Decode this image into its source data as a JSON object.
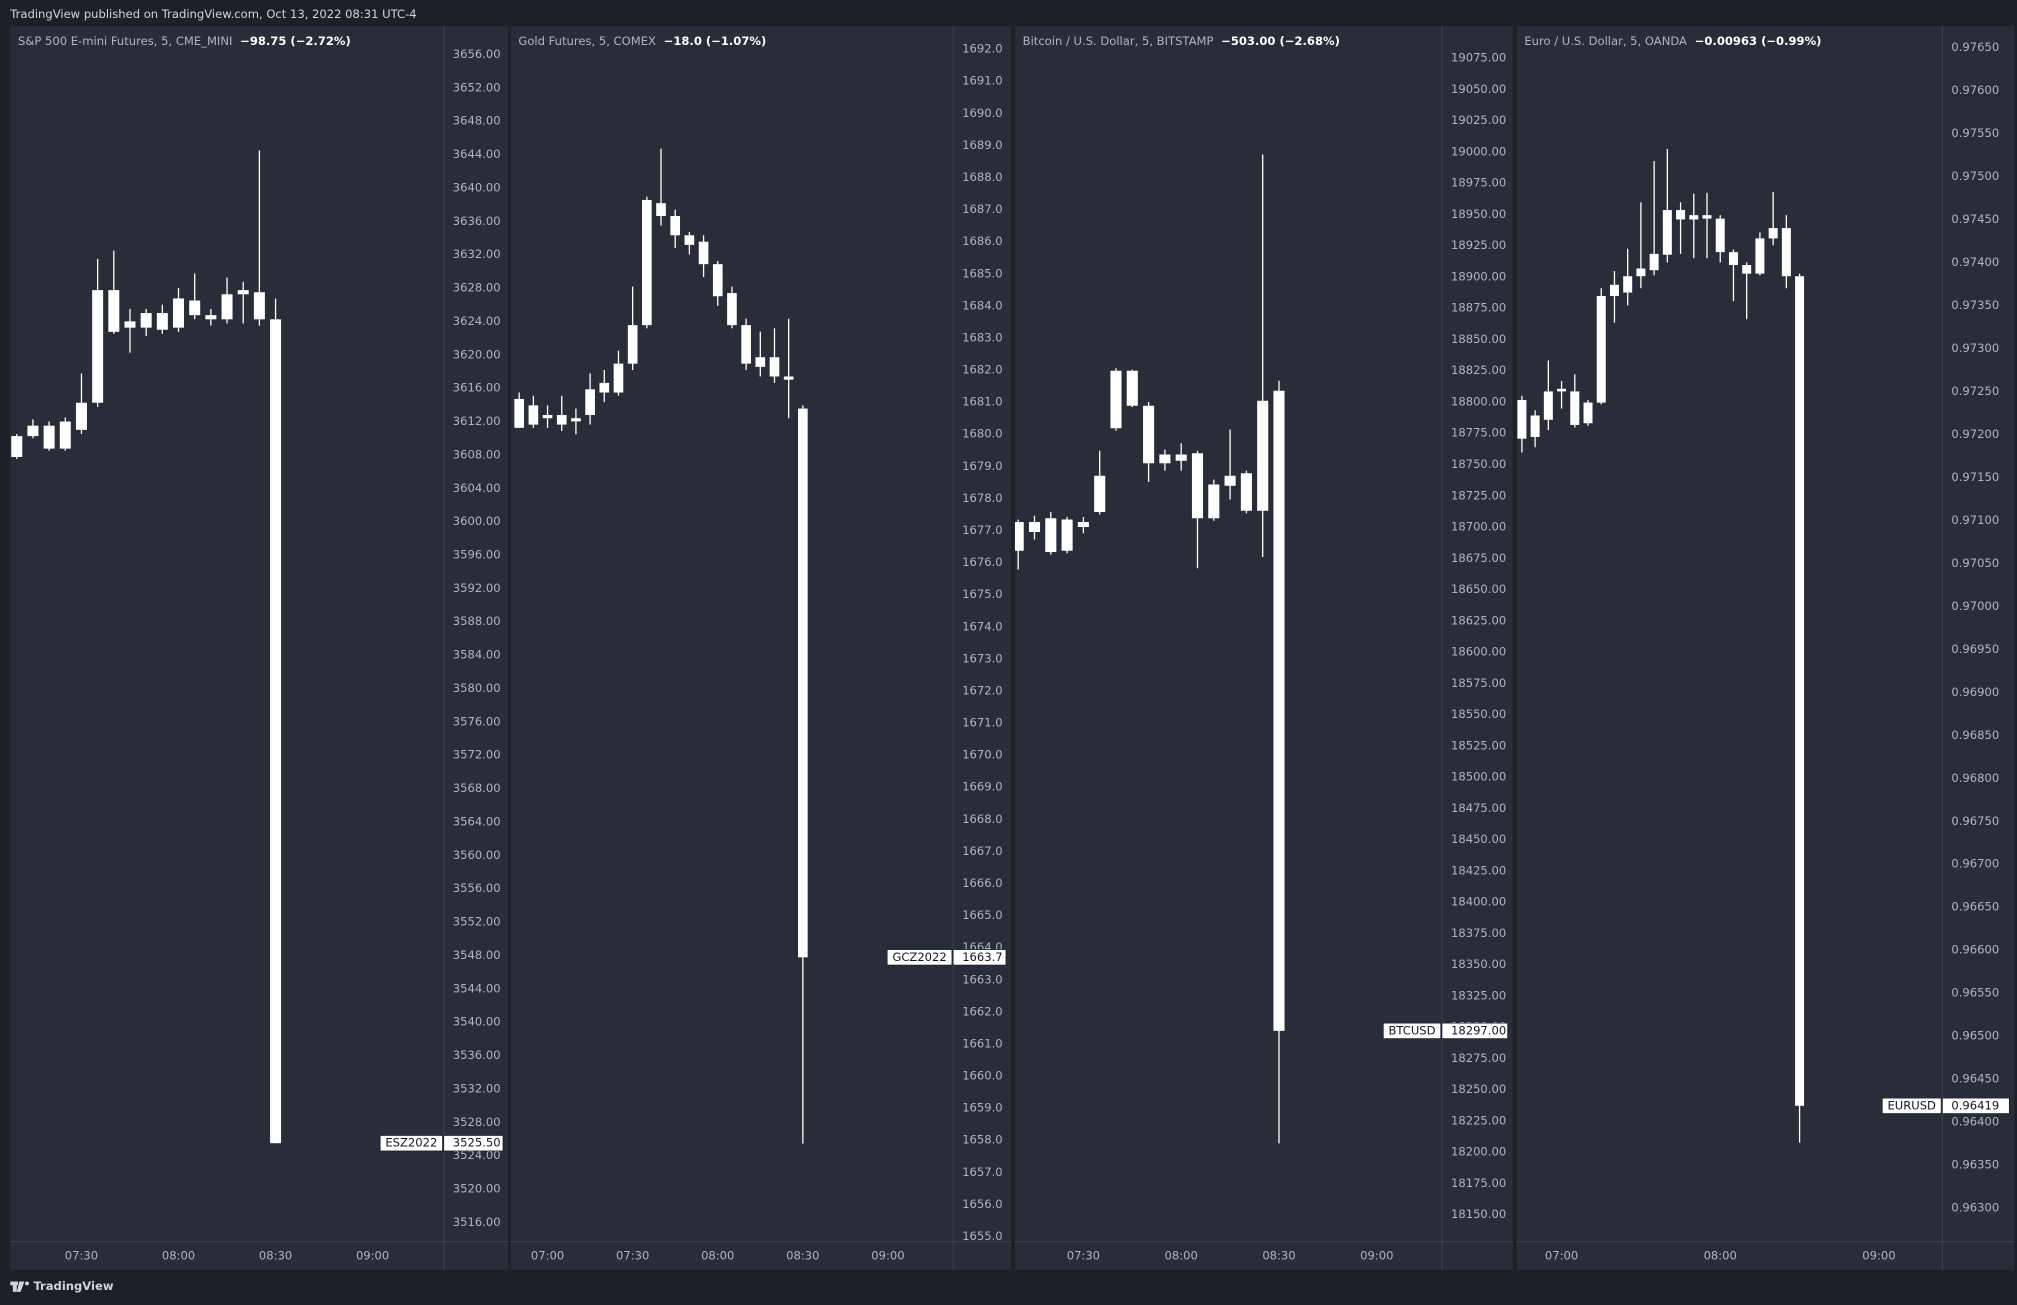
{
  "header": {
    "text": "TradingView published on TradingView.com, Oct 13, 2022 08:31 UTC-4"
  },
  "footer": {
    "logo": "TradingView"
  },
  "chart_data": [
    {
      "type": "candlestick",
      "title": "S&P 500 E-mini Futures, 5, CME_MINI",
      "change": "−98.75 (−2.72%)",
      "color": "#ffffff",
      "grid": false,
      "x": [
        "07:10",
        "07:15",
        "07:20",
        "07:25",
        "07:30",
        "07:35",
        "07:40",
        "07:45",
        "07:50",
        "07:55",
        "08:00",
        "08:05",
        "08:10",
        "08:15",
        "08:20",
        "08:25",
        "08:30"
      ],
      "open": [
        3607.75,
        3610.25,
        3611.5,
        3608.75,
        3611,
        3614.25,
        3627.75,
        3624,
        3623.25,
        3625,
        3623.25,
        3626.5,
        3624.75,
        3624.25,
        3627.25,
        3627.5,
        3624.25
      ],
      "high": [
        3610.5,
        3612.25,
        3612,
        3612.5,
        3617.75,
        3631.5,
        3632.5,
        3625.5,
        3625.5,
        3626,
        3628,
        3629.75,
        3625.5,
        3629.25,
        3628.75,
        3644.5,
        3626.75
      ],
      "low": [
        3607.5,
        3610,
        3608.5,
        3608.5,
        3610.5,
        3613.75,
        3622.5,
        3620.25,
        3622.25,
        3622.5,
        3622.75,
        3624.25,
        3623.5,
        3623.75,
        3623.75,
        3623.5,
        3525.5
      ],
      "close": [
        3610.25,
        3611.5,
        3608.75,
        3612,
        3614.25,
        3627.75,
        3622.75,
        3623.25,
        3625,
        3623,
        3626.75,
        3624.75,
        3624.25,
        3627.25,
        3627.75,
        3624.25,
        3525.5
      ],
      "symbol": "ESZ2022",
      "last": {
        "value": 3525.5,
        "label": "3525.50"
      },
      "xlim": [
        "07:08",
        "09:22"
      ],
      "xticks": [
        "07:30",
        "08:00",
        "08:30",
        "09:00"
      ],
      "ylim": [
        3513.7,
        3659.4
      ],
      "yticks": [
        {
          "value": 3516,
          "label": "3516.00"
        },
        {
          "value": 3520,
          "label": "3520.00"
        },
        {
          "value": 3524,
          "label": "3524.00"
        },
        {
          "value": 3528,
          "label": "3528.00"
        },
        {
          "value": 3532,
          "label": "3532.00"
        },
        {
          "value": 3536,
          "label": "3536.00"
        },
        {
          "value": 3540,
          "label": "3540.00"
        },
        {
          "value": 3544,
          "label": "3544.00"
        },
        {
          "value": 3548,
          "label": "3548.00"
        },
        {
          "value": 3552,
          "label": "3552.00"
        },
        {
          "value": 3556,
          "label": "3556.00"
        },
        {
          "value": 3560,
          "label": "3560.00"
        },
        {
          "value": 3564,
          "label": "3564.00"
        },
        {
          "value": 3568,
          "label": "3568.00"
        },
        {
          "value": 3572,
          "label": "3572.00"
        },
        {
          "value": 3576,
          "label": "3576.00"
        },
        {
          "value": 3580,
          "label": "3580.00"
        },
        {
          "value": 3584,
          "label": "3584.00"
        },
        {
          "value": 3588,
          "label": "3588.00"
        },
        {
          "value": 3592,
          "label": "3592.00"
        },
        {
          "value": 3596,
          "label": "3596.00"
        },
        {
          "value": 3600,
          "label": "3600.00"
        },
        {
          "value": 3604,
          "label": "3604.00"
        },
        {
          "value": 3608,
          "label": "3608.00"
        },
        {
          "value": 3612,
          "label": "3612.00"
        },
        {
          "value": 3616,
          "label": "3616.00"
        },
        {
          "value": 3620,
          "label": "3620.00"
        },
        {
          "value": 3624,
          "label": "3624.00"
        },
        {
          "value": 3628,
          "label": "3628.00"
        },
        {
          "value": 3632,
          "label": "3632.00"
        },
        {
          "value": 3636,
          "label": "3636.00"
        },
        {
          "value": 3640,
          "label": "3640.00"
        },
        {
          "value": 3644,
          "label": "3644.00"
        },
        {
          "value": 3648,
          "label": "3648.00"
        },
        {
          "value": 3652,
          "label": "3652.00"
        },
        {
          "value": 3656,
          "label": "3656.00"
        }
      ]
    },
    {
      "type": "candlestick",
      "title": "Gold Futures, 5, COMEX",
      "change": "−18.0 (−1.07%)",
      "color": "#ffffff",
      "grid": false,
      "x": [
        "06:50",
        "06:55",
        "07:00",
        "07:05",
        "07:10",
        "07:15",
        "07:20",
        "07:25",
        "07:30",
        "07:35",
        "07:40",
        "07:45",
        "07:50",
        "07:55",
        "08:00",
        "08:05",
        "08:10",
        "08:15",
        "08:20",
        "08:25",
        "08:30"
      ],
      "open": [
        1681.1,
        1680.3,
        1680.5,
        1680.6,
        1680.4,
        1680.6,
        1681.3,
        1681.3,
        1682.2,
        1683.4,
        1687.2,
        1686.8,
        1686.2,
        1686.0,
        1685.3,
        1684.4,
        1683.4,
        1682.1,
        1682.4,
        1681.8,
        1680.8
      ],
      "high": [
        1681.3,
        1681.2,
        1680.9,
        1681.2,
        1680.8,
        1681.9,
        1682.0,
        1682.6,
        1684.6,
        1687.4,
        1688.9,
        1687.0,
        1686.3,
        1686.2,
        1685.4,
        1684.6,
        1683.6,
        1683.2,
        1683.3,
        1683.6,
        1680.9
      ],
      "low": [
        1680.2,
        1680.2,
        1680.2,
        1680.1,
        1680.0,
        1680.3,
        1681.0,
        1681.2,
        1682.0,
        1683.3,
        1686.5,
        1685.8,
        1685.6,
        1684.9,
        1684.0,
        1683.3,
        1682.0,
        1681.8,
        1681.6,
        1680.5,
        1657.9
      ],
      "close": [
        1680.2,
        1680.9,
        1680.6,
        1680.3,
        1680.5,
        1681.4,
        1681.6,
        1682.2,
        1683.4,
        1687.3,
        1686.8,
        1686.2,
        1685.9,
        1685.3,
        1684.3,
        1683.4,
        1682.2,
        1682.4,
        1681.8,
        1681.7,
        1663.7
      ],
      "symbol": "GCZ2022",
      "last": 1663.7,
      "xlim": [
        "06:47",
        "09:23"
      ],
      "xticks": [
        "07:00",
        "07:30",
        "08:00",
        "08:30",
        "09:00"
      ],
      "ylim": [
        1654.84,
        1692.72
      ],
      "yticks": [
        {
          "value": 1655,
          "label": "1655.0"
        },
        {
          "value": 1656,
          "label": "1656.0"
        },
        {
          "value": 1657,
          "label": "1657.0"
        },
        {
          "value": 1658,
          "label": "1658.0"
        },
        {
          "value": 1659,
          "label": "1659.0"
        },
        {
          "value": 1660,
          "label": "1660.0"
        },
        {
          "value": 1661,
          "label": "1661.0"
        },
        {
          "value": 1662,
          "label": "1662.0"
        },
        {
          "value": 1663,
          "label": "1663.0"
        },
        {
          "value": 1664,
          "label": "1664.0"
        },
        {
          "value": 1665,
          "label": "1665.0"
        },
        {
          "value": 1666,
          "label": "1666.0"
        },
        {
          "value": 1667,
          "label": "1667.0"
        },
        {
          "value": 1668,
          "label": "1668.0"
        },
        {
          "value": 1669,
          "label": "1669.0"
        },
        {
          "value": 1670,
          "label": "1670.0"
        },
        {
          "value": 1671,
          "label": "1671.0"
        },
        {
          "value": 1672,
          "label": "1672.0"
        },
        {
          "value": 1673,
          "label": "1673.0"
        },
        {
          "value": 1674,
          "label": "1674.0"
        },
        {
          "value": 1675,
          "label": "1675.0"
        },
        {
          "value": 1676,
          "label": "1676.0"
        },
        {
          "value": 1677,
          "label": "1677.0"
        },
        {
          "value": 1678,
          "label": "1678.0"
        },
        {
          "value": 1679,
          "label": "1679.0"
        },
        {
          "value": 1680,
          "label": "1680.0"
        },
        {
          "value": 1681,
          "label": "1681.0"
        },
        {
          "value": 1682,
          "label": "1682.0"
        },
        {
          "value": 1683,
          "label": "1683.0"
        },
        {
          "value": 1684,
          "label": "1684.0"
        },
        {
          "value": 1685,
          "label": "1685.0"
        },
        {
          "value": 1686,
          "label": "1686.0"
        },
        {
          "value": 1687,
          "label": "1687.0"
        },
        {
          "value": 1688,
          "label": "1688.0"
        },
        {
          "value": 1689,
          "label": "1689.0"
        },
        {
          "value": 1690,
          "label": "1690.0"
        },
        {
          "value": 1691,
          "label": "1691.0"
        },
        {
          "value": 1692,
          "label": "1692.0"
        }
      ]
    },
    {
      "type": "candlestick",
      "title": "Bitcoin / U.S. Dollar, 5, BITSTAMP",
      "change": "−503.00 (−2.68%)",
      "color": "#ffffff",
      "grid": false,
      "x": [
        "07:10",
        "07:15",
        "07:20",
        "07:25",
        "07:30",
        "07:35",
        "07:40",
        "07:45",
        "07:50",
        "07:55",
        "08:00",
        "08:05",
        "08:10",
        "08:15",
        "08:20",
        "08:25",
        "08:30"
      ],
      "open": [
        18681,
        18704,
        18680,
        18706,
        18700,
        18712,
        18779,
        18825,
        18797,
        18751,
        18758,
        18759,
        18707,
        18741,
        18713,
        18713,
        18809
      ],
      "high": [
        18706,
        18709,
        18712,
        18708,
        18708,
        18761,
        18827,
        18826,
        18800,
        18762,
        18767,
        18761,
        18738,
        18778,
        18745,
        18998,
        18817
      ],
      "low": [
        18666,
        18690,
        18678,
        18679,
        18695,
        18710,
        18777,
        18796,
        18736,
        18745,
        18745,
        18667,
        18705,
        18722,
        18711,
        18676,
        18207
      ],
      "close": [
        18704,
        18696,
        18707,
        18681,
        18704,
        18741,
        18825,
        18797,
        18751,
        18758,
        18753,
        18707,
        18734,
        18733,
        18743,
        18801,
        18297
      ],
      "symbol": "BTCUSD",
      "last": {
        "value": 18297,
        "label": "18297.00"
      },
      "xlim": [
        "07:09",
        "09:20"
      ],
      "xticks": [
        "07:30",
        "08:00",
        "08:30",
        "09:00"
      ],
      "ylim": [
        18128.4,
        19100.7
      ],
      "yticks": [
        {
          "value": 18150,
          "label": "18150.00"
        },
        {
          "value": 18175,
          "label": "18175.00"
        },
        {
          "value": 18200,
          "label": "18200.00"
        },
        {
          "value": 18225,
          "label": "18225.00"
        },
        {
          "value": 18250,
          "label": "18250.00"
        },
        {
          "value": 18275,
          "label": "18275.00"
        },
        {
          "value": 18300,
          "label": "18300.00"
        },
        {
          "value": 18325,
          "label": "18325.00"
        },
        {
          "value": 18350,
          "label": "18350.00"
        },
        {
          "value": 18375,
          "label": "18375.00"
        },
        {
          "value": 18400,
          "label": "18400.00"
        },
        {
          "value": 18425,
          "label": "18425.00"
        },
        {
          "value": 18450,
          "label": "18450.00"
        },
        {
          "value": 18475,
          "label": "18475.00"
        },
        {
          "value": 18500,
          "label": "18500.00"
        },
        {
          "value": 18525,
          "label": "18525.00"
        },
        {
          "value": 18550,
          "label": "18550.00"
        },
        {
          "value": 18575,
          "label": "18575.00"
        },
        {
          "value": 18600,
          "label": "18600.00"
        },
        {
          "value": 18625,
          "label": "18625.00"
        },
        {
          "value": 18650,
          "label": "18650.00"
        },
        {
          "value": 18675,
          "label": "18675.00"
        },
        {
          "value": 18700,
          "label": "18700.00"
        },
        {
          "value": 18725,
          "label": "18725.00"
        },
        {
          "value": 18750,
          "label": "18750.00"
        },
        {
          "value": 18775,
          "label": "18775.00"
        },
        {
          "value": 18800,
          "label": "18800.00"
        },
        {
          "value": 18825,
          "label": "18825.00"
        },
        {
          "value": 18850,
          "label": "18850.00"
        },
        {
          "value": 18875,
          "label": "18875.00"
        },
        {
          "value": 18900,
          "label": "18900.00"
        },
        {
          "value": 18925,
          "label": "18925.00"
        },
        {
          "value": 18950,
          "label": "18950.00"
        },
        {
          "value": 18975,
          "label": "18975.00"
        },
        {
          "value": 19000,
          "label": "19000.00"
        },
        {
          "value": 19025,
          "label": "19025.00"
        },
        {
          "value": 19050,
          "label": "19050.00"
        },
        {
          "value": 19075,
          "label": "19075.00"
        }
      ]
    },
    {
      "type": "candlestick",
      "title": "Euro / U.S. Dollar, 5, OANDA",
      "change": "−0.00963 (−0.99%)",
      "color": "#ffffff",
      "grid": false,
      "x": [
        "06:45",
        "06:50",
        "06:55",
        "07:00",
        "07:05",
        "07:10",
        "07:15",
        "07:20",
        "07:25",
        "07:30",
        "07:35",
        "07:40",
        "07:45",
        "07:50",
        "07:55",
        "08:00",
        "08:05",
        "08:10",
        "08:15",
        "08:20",
        "08:25",
        "08:30"
      ],
      "open": [
        0.9724,
        0.97197,
        0.97217,
        0.9725,
        0.9725,
        0.97213,
        0.97237,
        0.97361,
        0.97365,
        0.97384,
        0.97391,
        0.97409,
        0.97461,
        0.9745,
        0.97455,
        0.97451,
        0.97412,
        0.97397,
        0.97387,
        0.97428,
        0.9744,
        0.97384
      ],
      "high": [
        0.97245,
        0.97228,
        0.97286,
        0.97262,
        0.9727,
        0.9724,
        0.9737,
        0.9739,
        0.97416,
        0.9747,
        0.97518,
        0.97532,
        0.9747,
        0.9748,
        0.97481,
        0.97455,
        0.97415,
        0.974,
        0.97435,
        0.97482,
        0.97455,
        0.97387
      ],
      "low": [
        0.97179,
        0.97185,
        0.97205,
        0.9723,
        0.97208,
        0.9721,
        0.97235,
        0.9733,
        0.9735,
        0.9737,
        0.97385,
        0.974,
        0.9741,
        0.97405,
        0.97405,
        0.974,
        0.97355,
        0.97334,
        0.97385,
        0.9742,
        0.9737,
        0.96376
      ],
      "close": [
        0.97195,
        0.97222,
        0.9725,
        0.97253,
        0.97211,
        0.97237,
        0.97361,
        0.97374,
        0.97384,
        0.97393,
        0.9741,
        0.97461,
        0.9745,
        0.97455,
        0.97451,
        0.97412,
        0.97397,
        0.97387,
        0.97428,
        0.9744,
        0.97384,
        0.96419
      ],
      "symbol": "EURUSD",
      "last": 0.96419,
      "xlim": [
        "06:43",
        "09:24"
      ],
      "xticks": [
        "07:00",
        "08:00",
        "09:00"
      ],
      "ylim": [
        0.96261,
        0.97675
      ],
      "yticks": [
        {
          "value": 0.963,
          "label": "0.96300"
        },
        {
          "value": 0.9635,
          "label": "0.96350"
        },
        {
          "value": 0.964,
          "label": "0.96400"
        },
        {
          "value": 0.9645,
          "label": "0.96450"
        },
        {
          "value": 0.965,
          "label": "0.96500"
        },
        {
          "value": 0.9655,
          "label": "0.96550"
        },
        {
          "value": 0.966,
          "label": "0.96600"
        },
        {
          "value": 0.9665,
          "label": "0.96650"
        },
        {
          "value": 0.967,
          "label": "0.96700"
        },
        {
          "value": 0.9675,
          "label": "0.96750"
        },
        {
          "value": 0.968,
          "label": "0.96800"
        },
        {
          "value": 0.9685,
          "label": "0.96850"
        },
        {
          "value": 0.969,
          "label": "0.96900"
        },
        {
          "value": 0.9695,
          "label": "0.96950"
        },
        {
          "value": 0.97,
          "label": "0.97000"
        },
        {
          "value": 0.9705,
          "label": "0.97050"
        },
        {
          "value": 0.971,
          "label": "0.97100"
        },
        {
          "value": 0.9715,
          "label": "0.97150"
        },
        {
          "value": 0.972,
          "label": "0.97200"
        },
        {
          "value": 0.9725,
          "label": "0.97250"
        },
        {
          "value": 0.973,
          "label": "0.97300"
        },
        {
          "value": 0.9735,
          "label": "0.97350"
        },
        {
          "value": 0.974,
          "label": "0.97400"
        },
        {
          "value": 0.9745,
          "label": "0.97450"
        },
        {
          "value": 0.975,
          "label": "0.97500"
        },
        {
          "value": 0.9755,
          "label": "0.97550"
        },
        {
          "value": 0.976,
          "label": "0.97600"
        },
        {
          "value": 0.9765,
          "label": "0.97650"
        }
      ]
    }
  ]
}
